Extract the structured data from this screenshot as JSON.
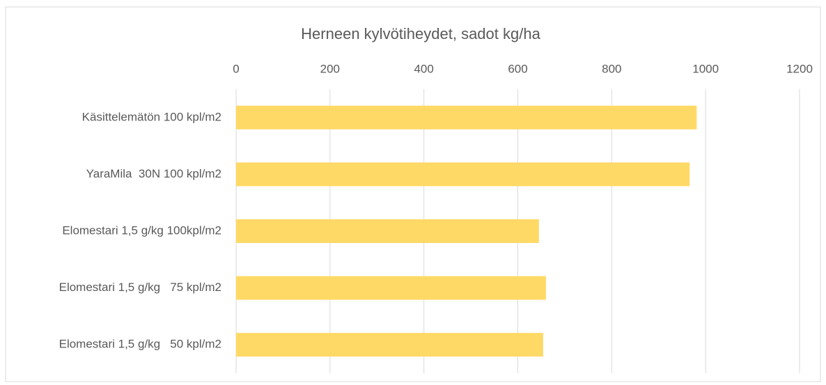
{
  "chart_data": {
    "type": "bar",
    "orientation": "horizontal",
    "title": "Herneen kylvötiheydet, sadot kg/ha",
    "categories": [
      "Käsittelemätön 100 kpl/m2",
      "YaraMila  30N 100 kpl/m2",
      "Elomestari 1,5 g/kg 100kpl/m2",
      "Elomestari 1,5 g/kg   75 kpl/m2",
      "Elomestari 1,5 g/kg   50 kpl/m2"
    ],
    "values": [
      981,
      966,
      645,
      660,
      654
    ],
    "color": "#ffd966",
    "xlim": [
      0,
      1200
    ],
    "xticks": [
      0,
      200,
      400,
      600,
      800,
      1000,
      1200
    ],
    "grid": true
  }
}
